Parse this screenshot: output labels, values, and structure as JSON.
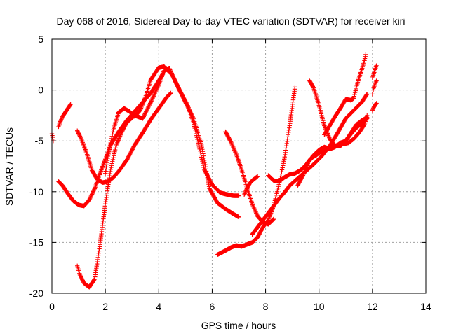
{
  "chart_data": {
    "type": "scatter",
    "title": "Day 068 of 2016, Sidereal Day-to-day VTEC variation (SDTVAR) for receiver kiri",
    "xlabel": "GPS time / hours",
    "ylabel": "SDTVAR / TECUs",
    "xlim": [
      0,
      14
    ],
    "ylim": [
      -20,
      5
    ],
    "x_ticks": [
      "0",
      "2",
      "4",
      "6",
      "8",
      "10",
      "12",
      "14"
    ],
    "y_ticks": [
      "-20",
      "-15",
      "-10",
      "-5",
      "0",
      "5"
    ],
    "grid": true,
    "marker": "+",
    "color": "#ff0000",
    "series": [
      {
        "x": [
          0.0,
          0.05
        ],
        "y": [
          -4.3,
          -5.0
        ]
      },
      {
        "x": [
          0.25,
          0.3,
          0.4,
          0.5,
          0.6,
          0.7
        ],
        "y": [
          -3.6,
          -3.2,
          -2.6,
          -2.2,
          -1.8,
          -1.4
        ]
      },
      {
        "x": [
          0.25,
          0.4,
          0.6,
          0.8,
          1.0,
          1.2,
          1.4,
          1.6,
          1.8,
          2.0,
          2.2,
          2.5,
          2.8,
          3.1,
          3.4,
          3.7,
          4.0,
          4.15
        ],
        "y": [
          -9.0,
          -9.4,
          -10.2,
          -10.9,
          -11.3,
          -11.4,
          -10.8,
          -9.7,
          -8.2,
          -6.8,
          -5.4,
          -4.1,
          -3.0,
          -2.1,
          -1.2,
          -0.3,
          0.9,
          1.6
        ]
      },
      {
        "x": [
          0.95,
          1.1,
          1.3,
          1.5,
          1.7,
          1.9,
          2.1,
          2.3,
          2.5,
          2.8,
          3.1,
          3.4,
          3.7,
          4.0,
          4.3,
          4.45
        ],
        "y": [
          -4.0,
          -4.8,
          -6.2,
          -7.9,
          -8.8,
          -9.1,
          -9.0,
          -8.6,
          -8.0,
          -6.9,
          -5.4,
          -4.2,
          -2.9,
          -1.8,
          -0.7,
          -0.3
        ]
      },
      {
        "x": [
          0.95,
          1.05,
          1.2,
          1.4,
          1.6,
          1.8,
          2.0,
          2.2,
          2.4,
          2.6,
          2.8,
          3.1,
          3.4,
          3.7,
          4.0,
          4.2,
          4.4,
          4.7,
          5.0,
          5.3,
          5.6,
          5.9,
          6.2,
          6.5,
          6.8,
          7.0
        ],
        "y": [
          -17.3,
          -18.2,
          -19.0,
          -19.4,
          -18.6,
          -15.2,
          -11.2,
          -7.8,
          -5.5,
          -4.2,
          -3.2,
          -2.5,
          -2.8,
          -1.2,
          0.5,
          1.9,
          2.1,
          0.4,
          -1.2,
          -2.8,
          -5.4,
          -9.7,
          -11.1,
          -11.7,
          -12.2,
          -12.5
        ]
      },
      {
        "x": [
          2.0,
          2.1,
          2.3,
          2.5,
          2.7,
          2.9,
          3.1,
          3.3,
          3.5,
          3.7,
          4.0,
          4.2,
          4.5,
          4.8,
          5.1,
          5.3,
          5.5,
          5.7,
          6.0,
          6.3,
          6.6,
          6.8,
          7.0
        ],
        "y": [
          -8.2,
          -6.5,
          -3.9,
          -2.2,
          -1.8,
          -2.1,
          -2.6,
          -2.0,
          -0.7,
          1.0,
          2.2,
          2.3,
          1.5,
          -0.1,
          -1.6,
          -3.2,
          -5.4,
          -7.8,
          -9.3,
          -10.1,
          -10.3,
          -10.4,
          -10.4
        ]
      },
      {
        "x": [
          6.2,
          6.5,
          6.7,
          6.9,
          7.1,
          7.3,
          7.5,
          7.7,
          7.9,
          8.1,
          8.3,
          8.5,
          8.7,
          8.9,
          9.1
        ],
        "y": [
          -16.2,
          -15.8,
          -15.5,
          -15.3,
          -15.4,
          -15.2,
          -15.0,
          -14.5,
          -13.5,
          -12.8,
          -11.4,
          -9.3,
          -6.8,
          -3.5,
          0.3
        ]
      },
      {
        "x": [
          6.5,
          6.7,
          6.9,
          7.1,
          7.3,
          7.5,
          7.7,
          7.9,
          8.1,
          8.3
        ],
        "y": [
          -4.1,
          -5.1,
          -6.3,
          -7.8,
          -9.6,
          -11.2,
          -12.4,
          -13.0,
          -13.2,
          -12.7
        ]
      },
      {
        "x": [
          7.2,
          7.3,
          7.4,
          7.5,
          7.6,
          7.7
        ],
        "y": [
          -10.3,
          -9.7,
          -9.2,
          -8.9,
          -8.7,
          -8.5
        ]
      },
      {
        "x": [
          7.5,
          7.7,
          7.9,
          8.1,
          8.3,
          8.5,
          8.7,
          8.9,
          9.2,
          9.5,
          9.8,
          10.1,
          10.4,
          10.7,
          11.0,
          11.3,
          11.6,
          11.8
        ],
        "y": [
          -14.2,
          -13.5,
          -12.8,
          -12.1,
          -11.4,
          -10.7,
          -10.1,
          -9.4,
          -8.7,
          -8.0,
          -7.3,
          -6.5,
          -5.5,
          -4.2,
          -2.8,
          -2.0,
          -1.2,
          -0.4
        ]
      },
      {
        "x": [
          8.1,
          8.3,
          8.5,
          8.7,
          8.9,
          9.1,
          9.3,
          9.5,
          9.7,
          9.9,
          10.1,
          10.3,
          10.5,
          10.7,
          10.9,
          11.1,
          11.3,
          11.5,
          11.7,
          11.8
        ],
        "y": [
          -8.4,
          -8.9,
          -9.0,
          -8.6,
          -8.3,
          -8.2,
          -7.9,
          -7.4,
          -6.7,
          -6.4,
          -6.0,
          -5.8,
          -5.6,
          -5.4,
          -5.3,
          -5.2,
          -4.8,
          -4.2,
          -3.4,
          -2.5
        ]
      },
      {
        "x": [
          9.2,
          9.4,
          9.6,
          9.8,
          10.0,
          10.2,
          10.4,
          10.6,
          10.8,
          11.0,
          11.2,
          11.4,
          11.6,
          11.8
        ],
        "y": [
          -9.4,
          -8.4,
          -7.1,
          -6.4,
          -5.9,
          -5.6,
          -5.8,
          -5.6,
          -5.2,
          -5.0,
          -4.3,
          -3.7,
          -3.3,
          -2.8
        ]
      },
      {
        "x": [
          9.65,
          9.8,
          10.0,
          10.2,
          10.4,
          10.6,
          10.8,
          11.0,
          11.2,
          11.4,
          11.6,
          11.8
        ],
        "y": [
          0.9,
          0.2,
          -1.5,
          -3.5,
          -4.8,
          -5.5,
          -5.5,
          -5.0,
          -4.2,
          -3.4,
          -3.0,
          -2.7
        ]
      },
      {
        "x": [
          10.2,
          10.4,
          10.6,
          10.8,
          11.0,
          11.2,
          11.3,
          11.4,
          11.5,
          11.6,
          11.7,
          11.75
        ],
        "y": [
          -4.4,
          -3.5,
          -2.6,
          -1.8,
          -0.9,
          -1.0,
          -0.8,
          0.3,
          1.2,
          2.0,
          2.9,
          3.5
        ]
      },
      {
        "x": [
          12.0,
          12.05,
          12.1,
          12.15
        ],
        "y": [
          -2.0,
          -1.7,
          -1.5,
          -1.3
        ]
      },
      {
        "x": [
          12.0,
          12.05,
          12.1,
          12.15
        ],
        "y": [
          -0.4,
          0.2,
          0.6,
          0.9
        ]
      },
      {
        "x": [
          12.0,
          12.05,
          12.1,
          12.15
        ],
        "y": [
          1.2,
          1.6,
          2.0,
          2.4
        ]
      }
    ]
  }
}
